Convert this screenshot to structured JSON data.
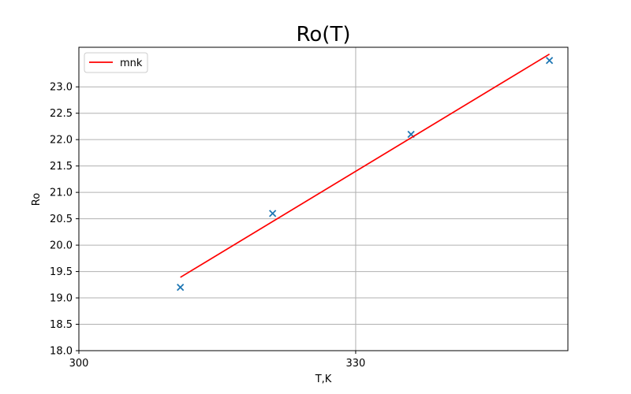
{
  "chart_data": {
    "type": "scatter",
    "title": "Ro(T)",
    "xlabel": "T,K",
    "ylabel": "Ro",
    "xlim": [
      300,
      353
    ],
    "ylim": [
      18.0,
      23.75
    ],
    "xticks": [
      300,
      330
    ],
    "xtick_labels": [
      "300",
      "330"
    ],
    "yticks": [
      18.0,
      18.5,
      19.0,
      19.5,
      20.0,
      20.5,
      21.0,
      21.5,
      22.0,
      22.5,
      23.0
    ],
    "ytick_labels": [
      "18.0",
      "18.5",
      "19.0",
      "19.5",
      "20.0",
      "20.5",
      "21.0",
      "21.5",
      "22.0",
      "22.5",
      "23.0"
    ],
    "grid": true,
    "legend_position": "top-left",
    "series": [
      {
        "kind": "scatter",
        "marker": "x",
        "color": "#1f77b4",
        "x": [
          311,
          321,
          336,
          351
        ],
        "y": [
          19.2,
          20.6,
          22.1,
          23.5
        ]
      },
      {
        "kind": "line",
        "name": "mnk",
        "color": "#ff0000",
        "x": [
          311,
          351
        ],
        "y": [
          19.39,
          23.62
        ]
      }
    ]
  }
}
